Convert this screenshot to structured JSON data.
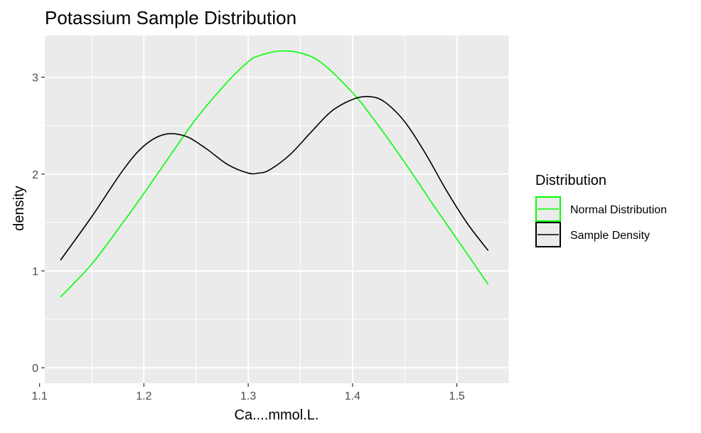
{
  "chart_data": {
    "type": "line",
    "title": "Potassium Sample Distribution",
    "xlabel": "Ca....mmol.L.",
    "ylabel": "density",
    "xlim": [
      1.105,
      1.55
    ],
    "ylim": [
      -0.16,
      3.43
    ],
    "x_ticks": [
      1.1,
      1.2,
      1.3,
      1.4,
      1.5
    ],
    "x_tick_labels": [
      "1.1",
      "1.2",
      "1.3",
      "1.4",
      "1.5"
    ],
    "y_ticks": [
      0,
      1,
      2,
      3
    ],
    "y_tick_labels": [
      "0",
      "1",
      "2",
      "3"
    ],
    "grid": true,
    "legend": {
      "title": "Distribution",
      "placement": "right",
      "entries": [
        "Normal Distribution",
        "Sample Density"
      ]
    },
    "series": [
      {
        "name": "Normal Distribution",
        "color": "#00ff00",
        "x": [
          1.12,
          1.15,
          1.18,
          1.2,
          1.22,
          1.25,
          1.28,
          1.3,
          1.31,
          1.33,
          1.35,
          1.37,
          1.4,
          1.42,
          1.45,
          1.48,
          1.5,
          1.53
        ],
        "y": [
          0.73,
          1.07,
          1.5,
          1.8,
          2.11,
          2.57,
          2.95,
          3.16,
          3.22,
          3.27,
          3.25,
          3.15,
          2.84,
          2.57,
          2.12,
          1.64,
          1.33,
          0.86
        ]
      },
      {
        "name": "Sample Density",
        "color": "#000000",
        "x": [
          1.12,
          1.15,
          1.18,
          1.2,
          1.22,
          1.24,
          1.26,
          1.28,
          1.3,
          1.31,
          1.32,
          1.34,
          1.36,
          1.38,
          1.4,
          1.415,
          1.43,
          1.45,
          1.47,
          1.49,
          1.51,
          1.53
        ],
        "y": [
          1.11,
          1.56,
          2.04,
          2.29,
          2.41,
          2.39,
          2.26,
          2.1,
          2.01,
          2.01,
          2.04,
          2.2,
          2.43,
          2.65,
          2.77,
          2.8,
          2.75,
          2.54,
          2.21,
          1.83,
          1.49,
          1.21
        ]
      }
    ]
  }
}
